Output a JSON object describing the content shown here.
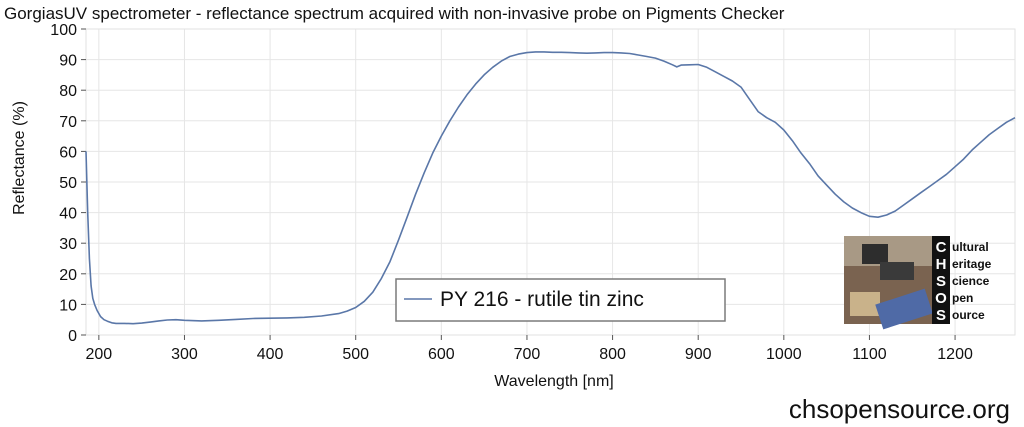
{
  "chart_data": {
    "type": "line",
    "title": "GorgiasUV spectrometer - reflectance spectrum acquired with non-invasive probe on Pigments Checker",
    "xlabel": "Wavelength [nm]",
    "ylabel": "Reflectance (%)",
    "xlim": [
      185,
      1270
    ],
    "ylim": [
      0,
      100
    ],
    "x_ticks": [
      "200",
      "300",
      "400",
      "500",
      "600",
      "700",
      "800",
      "900",
      "1000",
      "1100",
      "1200"
    ],
    "y_ticks": [
      "0",
      "10",
      "20",
      "30",
      "40",
      "50",
      "60",
      "70",
      "80",
      "90",
      "100"
    ],
    "grid": true,
    "legend_position": "bottom-center",
    "series": [
      {
        "name": "PY 216 - rutile tin zinc",
        "color": "#5a77a8",
        "x": [
          185,
          187,
          189,
          191,
          193,
          195,
          198,
          202,
          206,
          210,
          215,
          220,
          230,
          240,
          250,
          260,
          270,
          280,
          290,
          300,
          320,
          340,
          360,
          380,
          400,
          420,
          440,
          460,
          480,
          490,
          500,
          510,
          520,
          530,
          540,
          550,
          560,
          570,
          580,
          590,
          600,
          610,
          620,
          630,
          640,
          650,
          660,
          670,
          680,
          690,
          700,
          710,
          720,
          730,
          740,
          750,
          760,
          770,
          780,
          790,
          800,
          810,
          820,
          830,
          840,
          850,
          860,
          870,
          875,
          880,
          890,
          900,
          910,
          920,
          930,
          940,
          950,
          960,
          970,
          980,
          990,
          1000,
          1010,
          1020,
          1030,
          1040,
          1050,
          1060,
          1070,
          1080,
          1090,
          1100,
          1110,
          1120,
          1130,
          1140,
          1150,
          1160,
          1170,
          1180,
          1190,
          1200,
          1210,
          1220,
          1230,
          1240,
          1250,
          1260,
          1270
        ],
        "y": [
          60,
          40,
          25,
          16,
          12,
          10,
          8,
          6,
          5,
          4.5,
          4,
          3.8,
          3.8,
          3.7,
          3.9,
          4.2,
          4.6,
          4.9,
          5,
          4.8,
          4.6,
          4.8,
          5.1,
          5.4,
          5.5,
          5.6,
          5.8,
          6.2,
          7,
          7.8,
          9,
          11,
          14,
          18.5,
          24,
          31,
          38.5,
          46,
          53,
          59.5,
          65,
          70,
          74.5,
          78.5,
          82,
          85,
          87.5,
          89.5,
          91,
          91.8,
          92.3,
          92.5,
          92.5,
          92.4,
          92.4,
          92.3,
          92.2,
          92.1,
          92.2,
          92.3,
          92.3,
          92.2,
          92,
          91.5,
          91,
          90.5,
          89.5,
          88.3,
          87.6,
          88.2,
          88.3,
          88.4,
          87.5,
          86,
          84.5,
          83,
          81,
          77,
          73,
          71,
          69.5,
          67,
          63.5,
          59.5,
          56,
          52,
          49,
          46,
          43.5,
          41.5,
          40,
          38.8,
          38.5,
          39.2,
          40.5,
          42.5,
          44.5,
          46.5,
          48.5,
          50.5,
          52.5,
          55,
          57.5,
          60.5,
          63,
          65.5,
          67.5,
          69.5,
          71
        ]
      }
    ]
  },
  "logo": {
    "letters": [
      "C",
      "H",
      "S",
      "O",
      "S"
    ],
    "words": [
      "ultural",
      "eritage",
      "cience",
      "pen",
      "ource"
    ]
  },
  "footer_url": "chsopensource.org"
}
